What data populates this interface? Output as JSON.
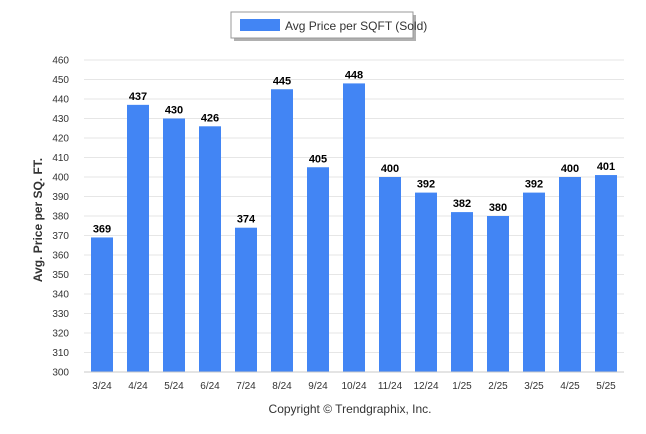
{
  "chart_data": {
    "type": "bar",
    "categories": [
      "3/24",
      "4/24",
      "5/24",
      "6/24",
      "7/24",
      "8/24",
      "9/24",
      "10/24",
      "11/24",
      "12/24",
      "1/25",
      "2/25",
      "3/25",
      "4/25",
      "5/25"
    ],
    "series": [
      {
        "name": "Avg Price per SQFT (Sold)",
        "values": [
          369,
          437,
          430,
          426,
          374,
          445,
          405,
          448,
          400,
          392,
          382,
          380,
          392,
          400,
          401
        ],
        "color": "#4285f4"
      }
    ],
    "ylabel": "Avg. Price per SQ. FT.",
    "xlabel": "",
    "ylim": [
      300,
      460
    ],
    "ytick_step": 10,
    "grid": true,
    "legend_position": "top-center",
    "footer": "Copyright © Trendgraphix, Inc."
  }
}
